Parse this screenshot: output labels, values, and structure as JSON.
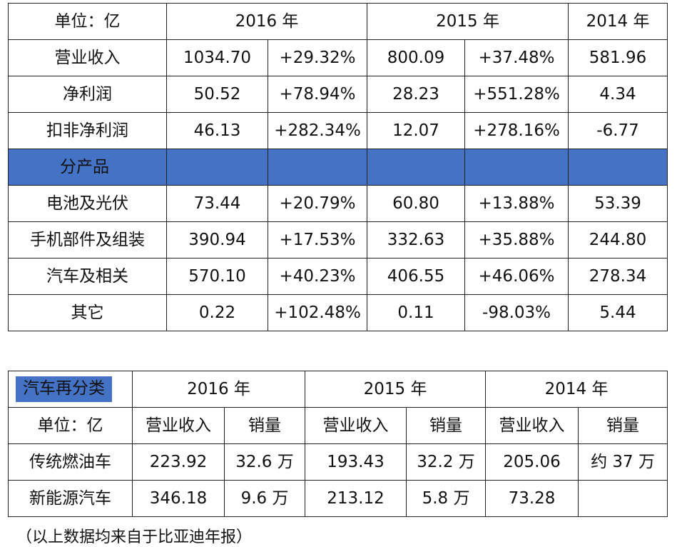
{
  "table1": {
    "unit_label": "单位：亿",
    "years": [
      "2016 年",
      "2015 年",
      "2014 年"
    ],
    "rows": [
      {
        "label": "营业收入",
        "v2016": "1034.70",
        "g2016": "+29.32%",
        "v2015": "800.09",
        "g2015": "+37.48%",
        "v2014": "581.96"
      },
      {
        "label": "净利润",
        "v2016": "50.52",
        "g2016": "+78.94%",
        "v2015": "28.23",
        "g2015": "+551.28%",
        "v2014": "4.34"
      },
      {
        "label": "扣非净利润",
        "v2016": "46.13",
        "g2016": "+282.34%",
        "v2015": "12.07",
        "g2015": "+278.16%",
        "v2014": "-6.77"
      }
    ],
    "section_label": "分产品",
    "product_rows": [
      {
        "label": "电池及光伏",
        "v2016": "73.44",
        "g2016": "+20.79%",
        "v2015": "60.80",
        "g2015": "+13.88%",
        "v2014": "53.39"
      },
      {
        "label": "手机部件及组装",
        "v2016": "390.94",
        "g2016": "+17.53%",
        "v2015": "332.63",
        "g2015": "+35.88%",
        "v2014": "244.80"
      },
      {
        "label": "汽车及相关",
        "v2016": "570.10",
        "g2016": "+40.23%",
        "v2015": "406.55",
        "g2015": "+46.06%",
        "v2014": "278.34"
      },
      {
        "label": "其它",
        "v2016": "0.22",
        "g2016": "+102.48%",
        "v2015": "0.11",
        "g2015": "-98.03%",
        "v2014": "5.44"
      }
    ]
  },
  "table2": {
    "category_label": "汽车再分类",
    "unit_label": "单位：亿",
    "years": [
      "2016 年",
      "2015 年",
      "2014 年"
    ],
    "sub_headers": {
      "revenue": "营业收入",
      "sales": "销量"
    },
    "rows": [
      {
        "label": "传统燃油车",
        "r2016": "223.92",
        "s2016": "32.6 万",
        "r2015": "193.43",
        "s2015": "32.2 万",
        "r2014": "205.06",
        "s2014": "约 37 万"
      },
      {
        "label": "新能源汽车",
        "r2016": "346.18",
        "s2016": "9.6 万",
        "r2015": "213.12",
        "s2015": "5.8 万",
        "r2014": "73.28",
        "s2014": ""
      }
    ]
  },
  "footnote": "（以上数据均来自于比亚迪年报）",
  "colors": {
    "accent": "#4472c4"
  }
}
